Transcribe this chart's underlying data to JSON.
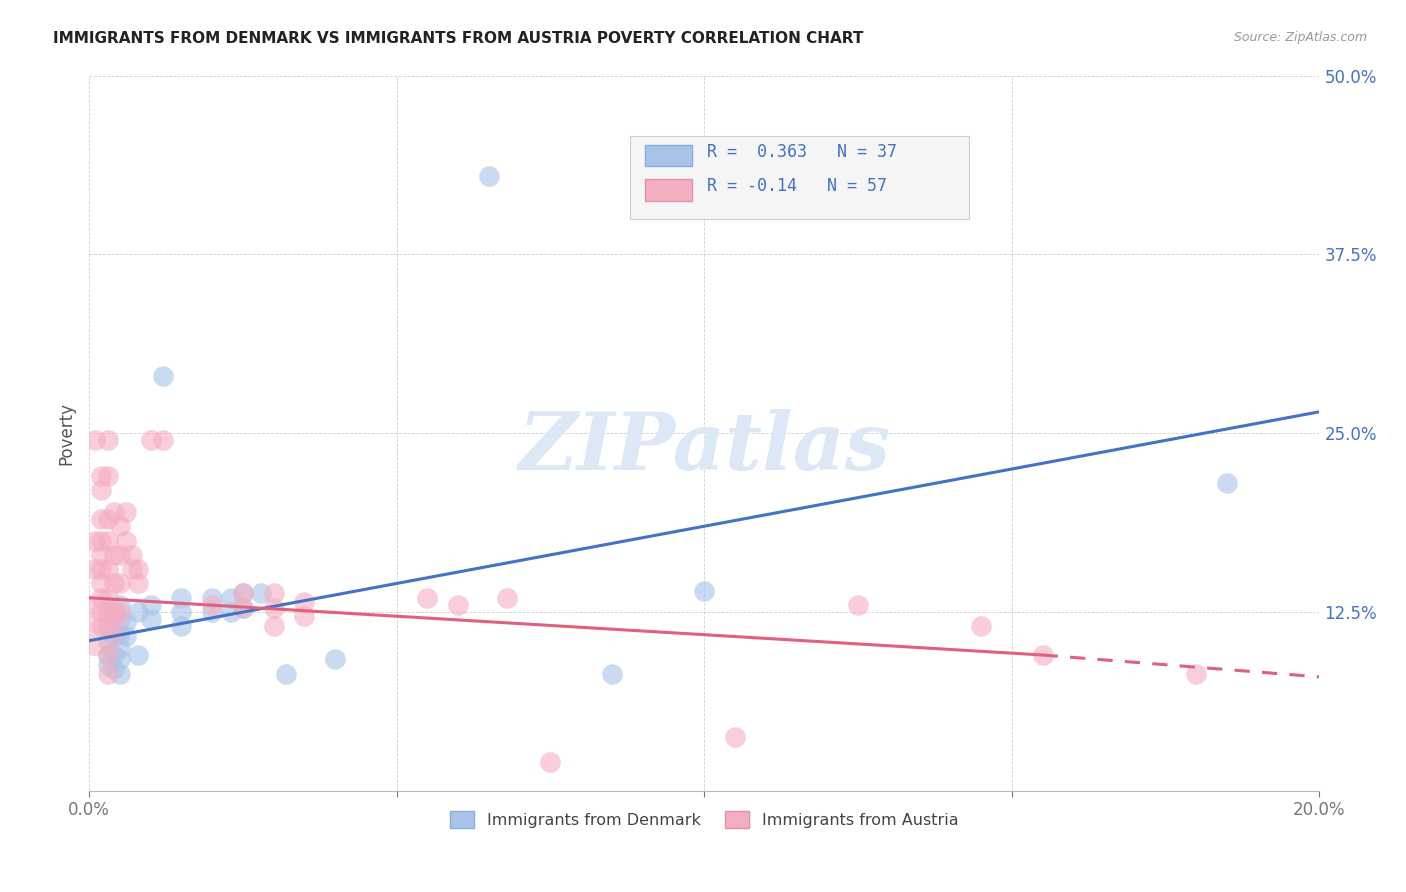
{
  "title": "IMMIGRANTS FROM DENMARK VS IMMIGRANTS FROM AUSTRIA POVERTY CORRELATION CHART",
  "source": "Source: ZipAtlas.com",
  "ylabel": "Poverty",
  "xlim": [
    0.0,
    0.2
  ],
  "ylim": [
    0.0,
    0.5
  ],
  "xticks": [
    0.0,
    0.05,
    0.1,
    0.15,
    0.2
  ],
  "xtick_labels": [
    "0.0%",
    "",
    "",
    "",
    "20.0%"
  ],
  "yticks": [
    0.0,
    0.125,
    0.25,
    0.375,
    0.5
  ],
  "ytick_labels": [
    "",
    "12.5%",
    "25.0%",
    "37.5%",
    "50.0%"
  ],
  "denmark_color": "#a8c4e8",
  "austria_color": "#f5adc0",
  "denmark_R": 0.363,
  "denmark_N": 37,
  "austria_R": -0.14,
  "austria_N": 57,
  "denmark_line_color": "#4472c4",
  "austria_line_color": "#e06080",
  "watermark_color": "#dce8f5",
  "denmark_line": [
    [
      0.0,
      0.105
    ],
    [
      0.2,
      0.265
    ]
  ],
  "austria_line_solid": [
    [
      0.0,
      0.135
    ],
    [
      0.155,
      0.095
    ]
  ],
  "austria_line_dash": [
    [
      0.155,
      0.095
    ],
    [
      0.205,
      0.078
    ]
  ],
  "denmark_points": [
    [
      0.003,
      0.115
    ],
    [
      0.003,
      0.105
    ],
    [
      0.003,
      0.095
    ],
    [
      0.003,
      0.088
    ],
    [
      0.004,
      0.125
    ],
    [
      0.004,
      0.108
    ],
    [
      0.004,
      0.095
    ],
    [
      0.004,
      0.085
    ],
    [
      0.005,
      0.13
    ],
    [
      0.005,
      0.12
    ],
    [
      0.005,
      0.11
    ],
    [
      0.005,
      0.1
    ],
    [
      0.005,
      0.092
    ],
    [
      0.005,
      0.082
    ],
    [
      0.006,
      0.118
    ],
    [
      0.006,
      0.108
    ],
    [
      0.008,
      0.125
    ],
    [
      0.008,
      0.095
    ],
    [
      0.01,
      0.13
    ],
    [
      0.01,
      0.12
    ],
    [
      0.012,
      0.29
    ],
    [
      0.015,
      0.135
    ],
    [
      0.015,
      0.125
    ],
    [
      0.015,
      0.115
    ],
    [
      0.02,
      0.135
    ],
    [
      0.02,
      0.125
    ],
    [
      0.023,
      0.135
    ],
    [
      0.023,
      0.125
    ],
    [
      0.025,
      0.138
    ],
    [
      0.025,
      0.128
    ],
    [
      0.028,
      0.138
    ],
    [
      0.032,
      0.082
    ],
    [
      0.04,
      0.092
    ],
    [
      0.065,
      0.43
    ],
    [
      0.085,
      0.082
    ],
    [
      0.1,
      0.14
    ],
    [
      0.185,
      0.215
    ]
  ],
  "austria_points": [
    [
      0.001,
      0.245
    ],
    [
      0.001,
      0.175
    ],
    [
      0.001,
      0.155
    ],
    [
      0.002,
      0.22
    ],
    [
      0.002,
      0.21
    ],
    [
      0.002,
      0.19
    ],
    [
      0.002,
      0.175
    ],
    [
      0.002,
      0.165
    ],
    [
      0.002,
      0.155
    ],
    [
      0.002,
      0.145
    ],
    [
      0.002,
      0.135
    ],
    [
      0.002,
      0.125
    ],
    [
      0.002,
      0.115
    ],
    [
      0.003,
      0.245
    ],
    [
      0.003,
      0.22
    ],
    [
      0.003,
      0.19
    ],
    [
      0.003,
      0.175
    ],
    [
      0.003,
      0.155
    ],
    [
      0.003,
      0.135
    ],
    [
      0.003,
      0.125
    ],
    [
      0.003,
      0.115
    ],
    [
      0.003,
      0.095
    ],
    [
      0.003,
      0.082
    ],
    [
      0.004,
      0.195
    ],
    [
      0.004,
      0.165
    ],
    [
      0.004,
      0.145
    ],
    [
      0.004,
      0.125
    ],
    [
      0.005,
      0.185
    ],
    [
      0.005,
      0.165
    ],
    [
      0.005,
      0.145
    ],
    [
      0.005,
      0.125
    ],
    [
      0.006,
      0.195
    ],
    [
      0.006,
      0.175
    ],
    [
      0.007,
      0.165
    ],
    [
      0.007,
      0.155
    ],
    [
      0.008,
      0.155
    ],
    [
      0.008,
      0.145
    ],
    [
      0.01,
      0.245
    ],
    [
      0.012,
      0.245
    ],
    [
      0.02,
      0.13
    ],
    [
      0.025,
      0.138
    ],
    [
      0.025,
      0.128
    ],
    [
      0.03,
      0.138
    ],
    [
      0.03,
      0.128
    ],
    [
      0.03,
      0.115
    ],
    [
      0.035,
      0.132
    ],
    [
      0.035,
      0.122
    ],
    [
      0.055,
      0.135
    ],
    [
      0.06,
      0.13
    ],
    [
      0.068,
      0.135
    ],
    [
      0.075,
      0.02
    ],
    [
      0.105,
      0.038
    ],
    [
      0.125,
      0.13
    ],
    [
      0.145,
      0.115
    ],
    [
      0.155,
      0.095
    ],
    [
      0.18,
      0.082
    ]
  ],
  "austria_large_point": [
    0.001,
    0.115
  ],
  "austria_large_size": 1800
}
